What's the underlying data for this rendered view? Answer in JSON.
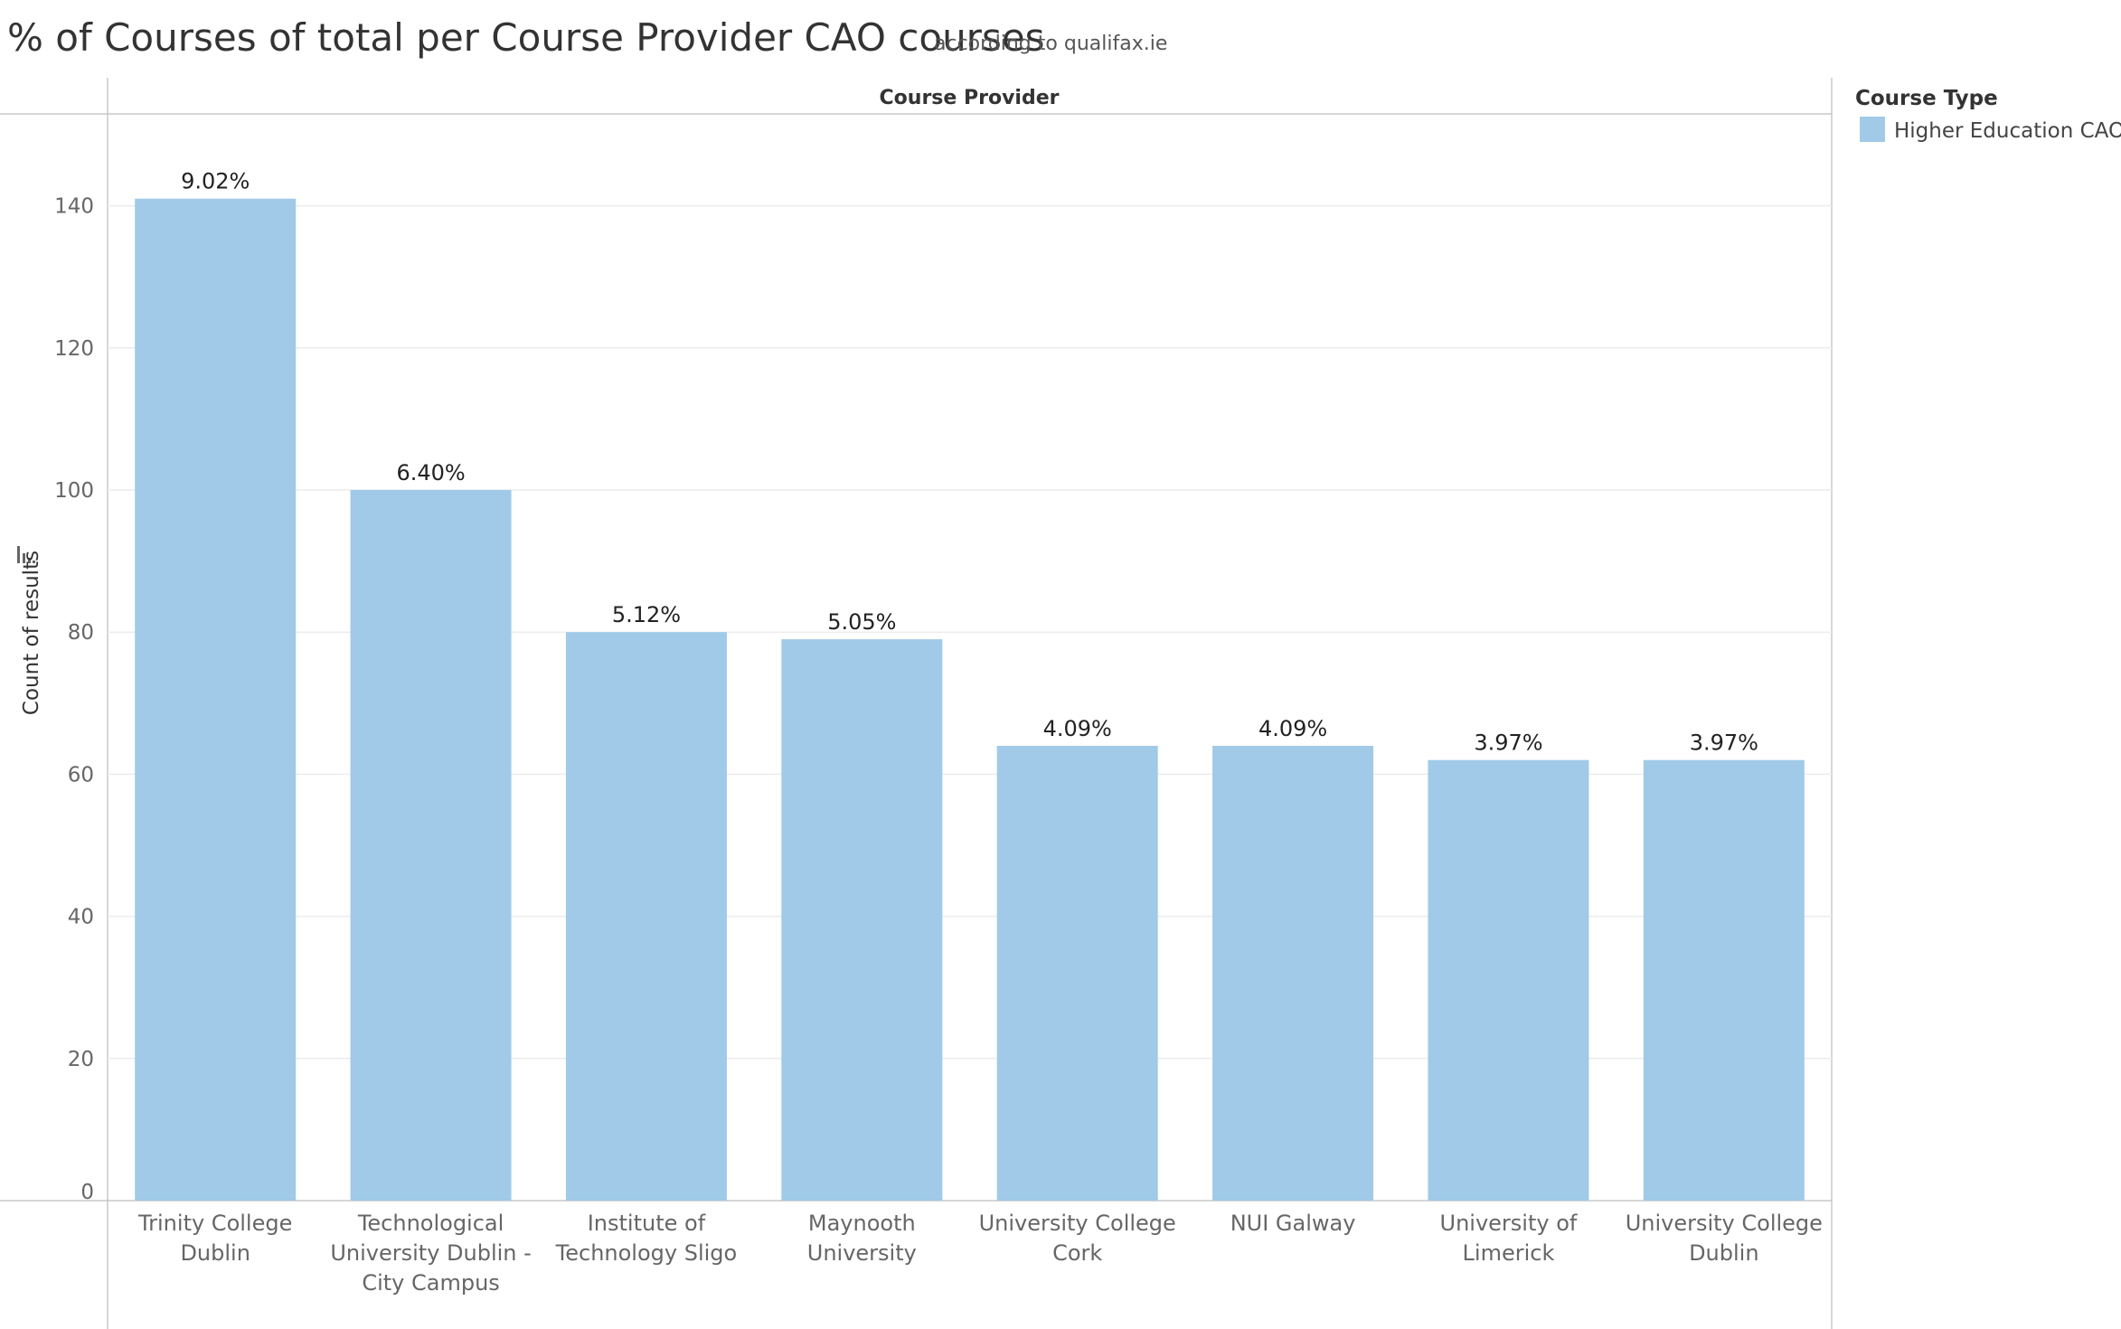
{
  "chart_data": {
    "type": "bar",
    "title": "% of Courses of total per Course Provider CAO courses",
    "subtitle": "according to qualifax.ie",
    "facet_header": "Course Provider",
    "xlabel": "",
    "ylabel": "Count of results",
    "ylim": [
      0,
      150
    ],
    "y_ticks": [
      0,
      20,
      40,
      60,
      80,
      100,
      120,
      140
    ],
    "grid": true,
    "legend_position": "top-right",
    "legend_title": "Course Type",
    "categories": [
      [
        "Trinity College",
        "Dublin"
      ],
      [
        "Technological",
        "University Dublin -",
        "City Campus"
      ],
      [
        "Institute of",
        "Technology Sligo"
      ],
      [
        "Maynooth",
        "University"
      ],
      [
        "University College",
        "Cork"
      ],
      [
        "NUI Galway"
      ],
      [
        "University of",
        "Limerick"
      ],
      [
        "University College",
        "Dublin"
      ]
    ],
    "series": [
      {
        "name": "Higher Education CAO",
        "color": "#a0cae8",
        "values": [
          141,
          100,
          80,
          79,
          64,
          64,
          62,
          62
        ],
        "labels": [
          "9.02%",
          "6.40%",
          "5.12%",
          "5.05%",
          "4.09%",
          "4.09%",
          "3.97%",
          "3.97%"
        ]
      }
    ]
  }
}
